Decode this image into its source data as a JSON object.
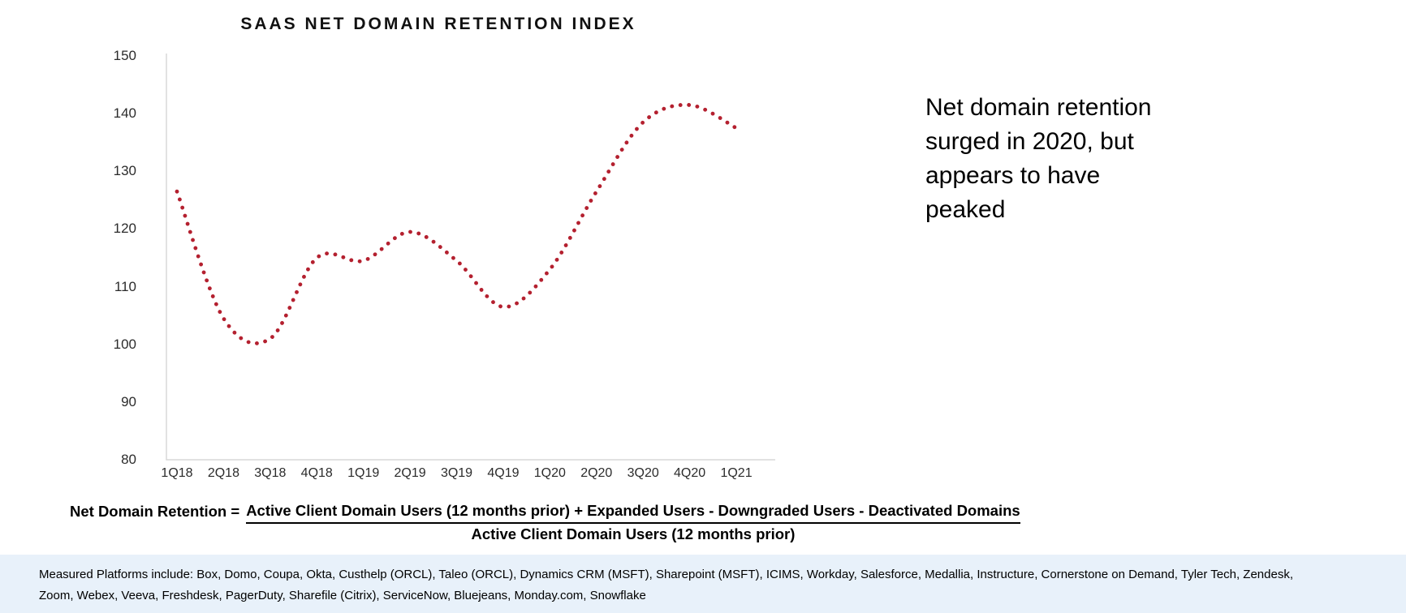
{
  "chart": {
    "title": "SAAS NET DOMAIN RETENTION INDEX"
  },
  "chart_data": {
    "type": "line",
    "title": "SAAS NET DOMAIN RETENTION INDEX",
    "series_name": "SaaS Net Domain Retention Index",
    "categories": [
      "1Q18",
      "2Q18",
      "3Q18",
      "4Q18",
      "1Q19",
      "2Q19",
      "3Q19",
      "4Q19",
      "1Q20",
      "2Q20",
      "3Q20",
      "4Q20",
      "1Q21"
    ],
    "values": [
      126.5,
      104.5,
      101,
      115,
      114.5,
      119.5,
      114.5,
      106.5,
      113,
      126.5,
      138.5,
      141.5,
      137.5
    ],
    "ylim": [
      80,
      150
    ],
    "yticks": [
      150,
      140,
      130,
      120,
      110,
      100,
      90,
      80
    ],
    "xlabel": "",
    "ylabel": "",
    "grid": false,
    "legend": false,
    "line_style": "dotted",
    "line_color": "#b4202f",
    "axis_color": "#d8d8d8"
  },
  "annotation": {
    "text": "Net domain retention\nsurged in 2020, but\nappears to have\npeaked"
  },
  "formula": {
    "lhs": "Net Domain Retention =",
    "numerator": "Active Client Domain Users (12 months prior) + Expanded Users - Downgraded Users - Deactivated Domains",
    "denominator": "Active Client Domain Users (12 months prior)"
  },
  "footer": {
    "bg_color": "#e8f1fa",
    "text": "Measured Platforms include: Box, Domo, Coupa, Okta, Custhelp (ORCL), Taleo (ORCL), Dynamics CRM (MSFT), Sharepoint (MSFT), ICIMS, Workday, Salesforce, Medallia, Instructure, Cornerstone on Demand, Tyler Tech, Zendesk,\nZoom, Webex, Veeva, Freshdesk, PagerDuty, Sharefile (Citrix), ServiceNow, Bluejeans, Monday.com, Snowflake"
  }
}
